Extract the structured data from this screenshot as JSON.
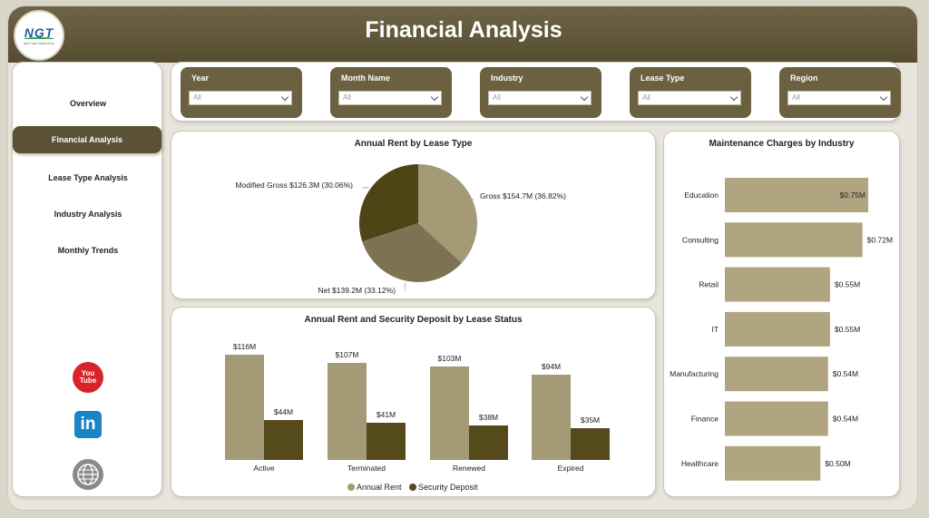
{
  "header": {
    "title": "Financial Analysis",
    "logo_text": "NGT",
    "logo_subtext": "NEXT GEN TEMPLATES"
  },
  "nav": {
    "items": [
      "Overview",
      "Financial Analysis",
      "Lease Type Analysis",
      "Industry Analysis",
      "Monthly Trends"
    ],
    "active": "Financial Analysis"
  },
  "social": {
    "icons": [
      "youtube-icon",
      "linkedin-icon",
      "globe-icon"
    ],
    "youtube_label": "You Tube",
    "linkedin_label": "in"
  },
  "filters": [
    {
      "label": "Year",
      "value": "All"
    },
    {
      "label": "Month Name",
      "value": "All"
    },
    {
      "label": "Industry",
      "value": "All"
    },
    {
      "label": "Lease Type",
      "value": "All"
    },
    {
      "label": "Region",
      "value": "All"
    }
  ],
  "colors": {
    "header": "#5e5436",
    "annual_rent": "#a59a76",
    "security_deposit": "#544a1c",
    "pie_gross": "#a59a76",
    "pie_net": "#7d7353",
    "pie_modified": "#4e4416",
    "industry_bar": "#b0a580"
  },
  "chart_data": [
    {
      "type": "pie",
      "title": "Annual Rent by Lease Type",
      "slices": [
        {
          "label": "Gross",
          "value": 154.7,
          "display": "$154.7M",
          "percent": "36.82%"
        },
        {
          "label": "Net",
          "value": 139.2,
          "display": "$139.2M",
          "percent": "33.12%"
        },
        {
          "label": "Modified Gross",
          "value": 126.3,
          "display": "$126.3M",
          "percent": "30.06%"
        }
      ]
    },
    {
      "type": "bar",
      "title": "Annual Rent and Security Deposit by Lease Status",
      "categories": [
        "Active",
        "Terminated",
        "Renewed",
        "Expired"
      ],
      "series": [
        {
          "name": "Annual Rent",
          "values": [
            116,
            107,
            103,
            94
          ],
          "labels": [
            "$116M",
            "$107M",
            "$103M",
            "$94M"
          ]
        },
        {
          "name": "Security Deposit",
          "values": [
            44,
            41,
            38,
            35
          ],
          "labels": [
            "$44M",
            "$41M",
            "$38M",
            "$35M"
          ]
        }
      ],
      "legend": "bottom"
    },
    {
      "type": "bar",
      "orientation": "horizontal",
      "title": "Maintenance Charges by Industry",
      "categories": [
        "Education",
        "Consulting",
        "Retail",
        "IT",
        "Manufacturing",
        "Finance",
        "Healthcare"
      ],
      "values": [
        0.75,
        0.72,
        0.55,
        0.55,
        0.54,
        0.54,
        0.5
      ],
      "labels": [
        "$0.75M",
        "$0.72M",
        "$0.55M",
        "$0.55M",
        "$0.54M",
        "$0.54M",
        "$0.50M"
      ]
    }
  ]
}
